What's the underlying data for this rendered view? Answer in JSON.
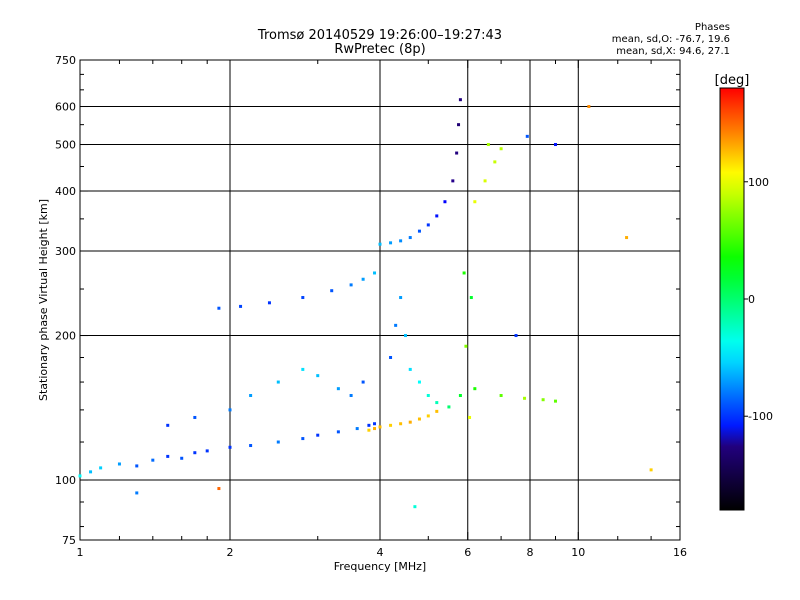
{
  "chart_data": {
    "type": "scatter",
    "title": "Tromsø 20140529 19:26:00–19:27:43",
    "subtitle": "RwPretec (8p)",
    "xlabel": "Frequency [MHz]",
    "ylabel": "Stationary phase Virtual Height [km]",
    "x_scale": "log",
    "y_scale": "log",
    "xlim": [
      1,
      16
    ],
    "ylim": [
      75,
      750
    ],
    "x_ticks": [
      1,
      2,
      4,
      6,
      8,
      10,
      16
    ],
    "x_tick_labels": [
      "1",
      "2",
      "4",
      "6",
      "8",
      "10",
      "16"
    ],
    "x_minor_ticks": [
      1.2,
      1.4,
      1.6,
      1.8,
      3,
      5,
      7,
      9,
      12,
      14
    ],
    "y_ticks": [
      75,
      100,
      200,
      300,
      400,
      500,
      600,
      750
    ],
    "y_tick_labels": [
      "75",
      "100",
      "200",
      "300",
      "400",
      "500",
      "600",
      "750"
    ],
    "grid_x": [
      2,
      4,
      6,
      8,
      10
    ],
    "grid_y": [
      100,
      200,
      300,
      400,
      500,
      600
    ],
    "grid": true,
    "colorbar": {
      "label": "[deg]",
      "min": -180,
      "max": 180,
      "ticks": [
        -100,
        0,
        100
      ],
      "tick_labels": [
        "-100",
        "0",
        "100"
      ],
      "colormap": "rainbow"
    },
    "phases": {
      "heading": "Phases",
      "line_o": "mean, sd,O: -76.7, 19.6",
      "line_x": "mean, sd,X:  94.6, 27.1"
    },
    "series": [
      {
        "points": [
          [
            1.0,
            102,
            -40
          ],
          [
            1.05,
            104,
            -60
          ],
          [
            1.1,
            106,
            -55
          ],
          [
            1.2,
            108,
            -70
          ],
          [
            1.3,
            107,
            -90
          ],
          [
            1.4,
            110,
            -85
          ],
          [
            1.5,
            112,
            -100
          ],
          [
            1.6,
            111,
            -90
          ],
          [
            1.7,
            114,
            -100
          ],
          [
            1.8,
            115,
            -100
          ],
          [
            2.0,
            117,
            -100
          ],
          [
            2.2,
            118,
            -90
          ],
          [
            2.5,
            120,
            -80
          ],
          [
            2.8,
            122,
            -90
          ],
          [
            3.0,
            124,
            -100
          ],
          [
            3.3,
            126,
            -90
          ],
          [
            3.6,
            128,
            -80
          ],
          [
            3.8,
            130,
            -100
          ],
          [
            3.9,
            131,
            -100
          ]
        ]
      },
      {
        "points": [
          [
            3.8,
            127,
            120
          ],
          [
            3.9,
            128,
            130
          ],
          [
            4.0,
            129,
            125
          ],
          [
            4.2,
            130,
            120
          ],
          [
            4.4,
            131,
            125
          ],
          [
            4.6,
            132,
            130
          ],
          [
            4.8,
            134,
            125
          ],
          [
            5.0,
            136,
            120
          ],
          [
            5.2,
            139,
            125
          ]
        ]
      },
      {
        "points": [
          [
            4.0,
            310,
            -60
          ],
          [
            4.2,
            312,
            -70
          ],
          [
            4.4,
            315,
            -75
          ],
          [
            4.6,
            320,
            -80
          ],
          [
            4.8,
            330,
            -90
          ],
          [
            5.0,
            340,
            -100
          ],
          [
            5.2,
            355,
            -110
          ],
          [
            5.4,
            380,
            -115
          ],
          [
            5.6,
            420,
            -120
          ],
          [
            5.7,
            480,
            -125
          ],
          [
            5.75,
            550,
            -130
          ],
          [
            5.8,
            620,
            -125
          ]
        ]
      },
      {
        "points": [
          [
            1.9,
            228,
            -90
          ],
          [
            2.1,
            230,
            -95
          ],
          [
            2.4,
            234,
            -100
          ],
          [
            2.8,
            240,
            -95
          ],
          [
            3.2,
            248,
            -90
          ],
          [
            3.5,
            255,
            -80
          ],
          [
            3.7,
            262,
            -70
          ],
          [
            3.9,
            270,
            -60
          ]
        ]
      },
      {
        "points": [
          [
            6.2,
            380,
            100
          ],
          [
            6.5,
            420,
            95
          ],
          [
            6.8,
            460,
            90
          ],
          [
            7.0,
            490,
            85
          ],
          [
            6.6,
            500,
            80
          ]
        ]
      },
      {
        "points": [
          [
            4.2,
            180,
            -90
          ],
          [
            4.3,
            210,
            -80
          ],
          [
            4.4,
            240,
            -70
          ],
          [
            4.5,
            200,
            -60
          ],
          [
            4.6,
            170,
            -50
          ],
          [
            4.8,
            160,
            -40
          ],
          [
            5.0,
            150,
            -30
          ],
          [
            5.2,
            145,
            -20
          ],
          [
            5.5,
            142,
            0
          ],
          [
            5.8,
            150,
            20
          ],
          [
            6.2,
            155,
            40
          ],
          [
            7.0,
            150,
            60
          ],
          [
            7.8,
            148,
            80
          ],
          [
            8.5,
            147,
            70
          ],
          [
            9.0,
            146,
            60
          ]
        ]
      },
      {
        "points": [
          [
            1.5,
            130,
            -100
          ],
          [
            1.7,
            135,
            -90
          ],
          [
            2.0,
            140,
            -80
          ],
          [
            2.2,
            150,
            -70
          ],
          [
            2.5,
            160,
            -60
          ],
          [
            2.8,
            170,
            -50
          ],
          [
            3.0,
            165,
            -60
          ],
          [
            3.3,
            155,
            -70
          ],
          [
            3.5,
            150,
            -80
          ],
          [
            3.7,
            160,
            -90
          ]
        ]
      },
      {
        "points": [
          [
            5.9,
            270,
            40
          ],
          [
            5.95,
            190,
            70
          ],
          [
            6.05,
            135,
            100
          ],
          [
            6.1,
            240,
            20
          ],
          [
            7.5,
            200,
            -100
          ],
          [
            7.9,
            520,
            -90
          ],
          [
            9.0,
            500,
            -110
          ],
          [
            10.5,
            600,
            140
          ],
          [
            12.5,
            320,
            130
          ],
          [
            14.0,
            105,
            120
          ],
          [
            4.7,
            88,
            -30
          ],
          [
            1.3,
            94,
            -80
          ],
          [
            1.9,
            96,
            150
          ]
        ]
      }
    ]
  }
}
